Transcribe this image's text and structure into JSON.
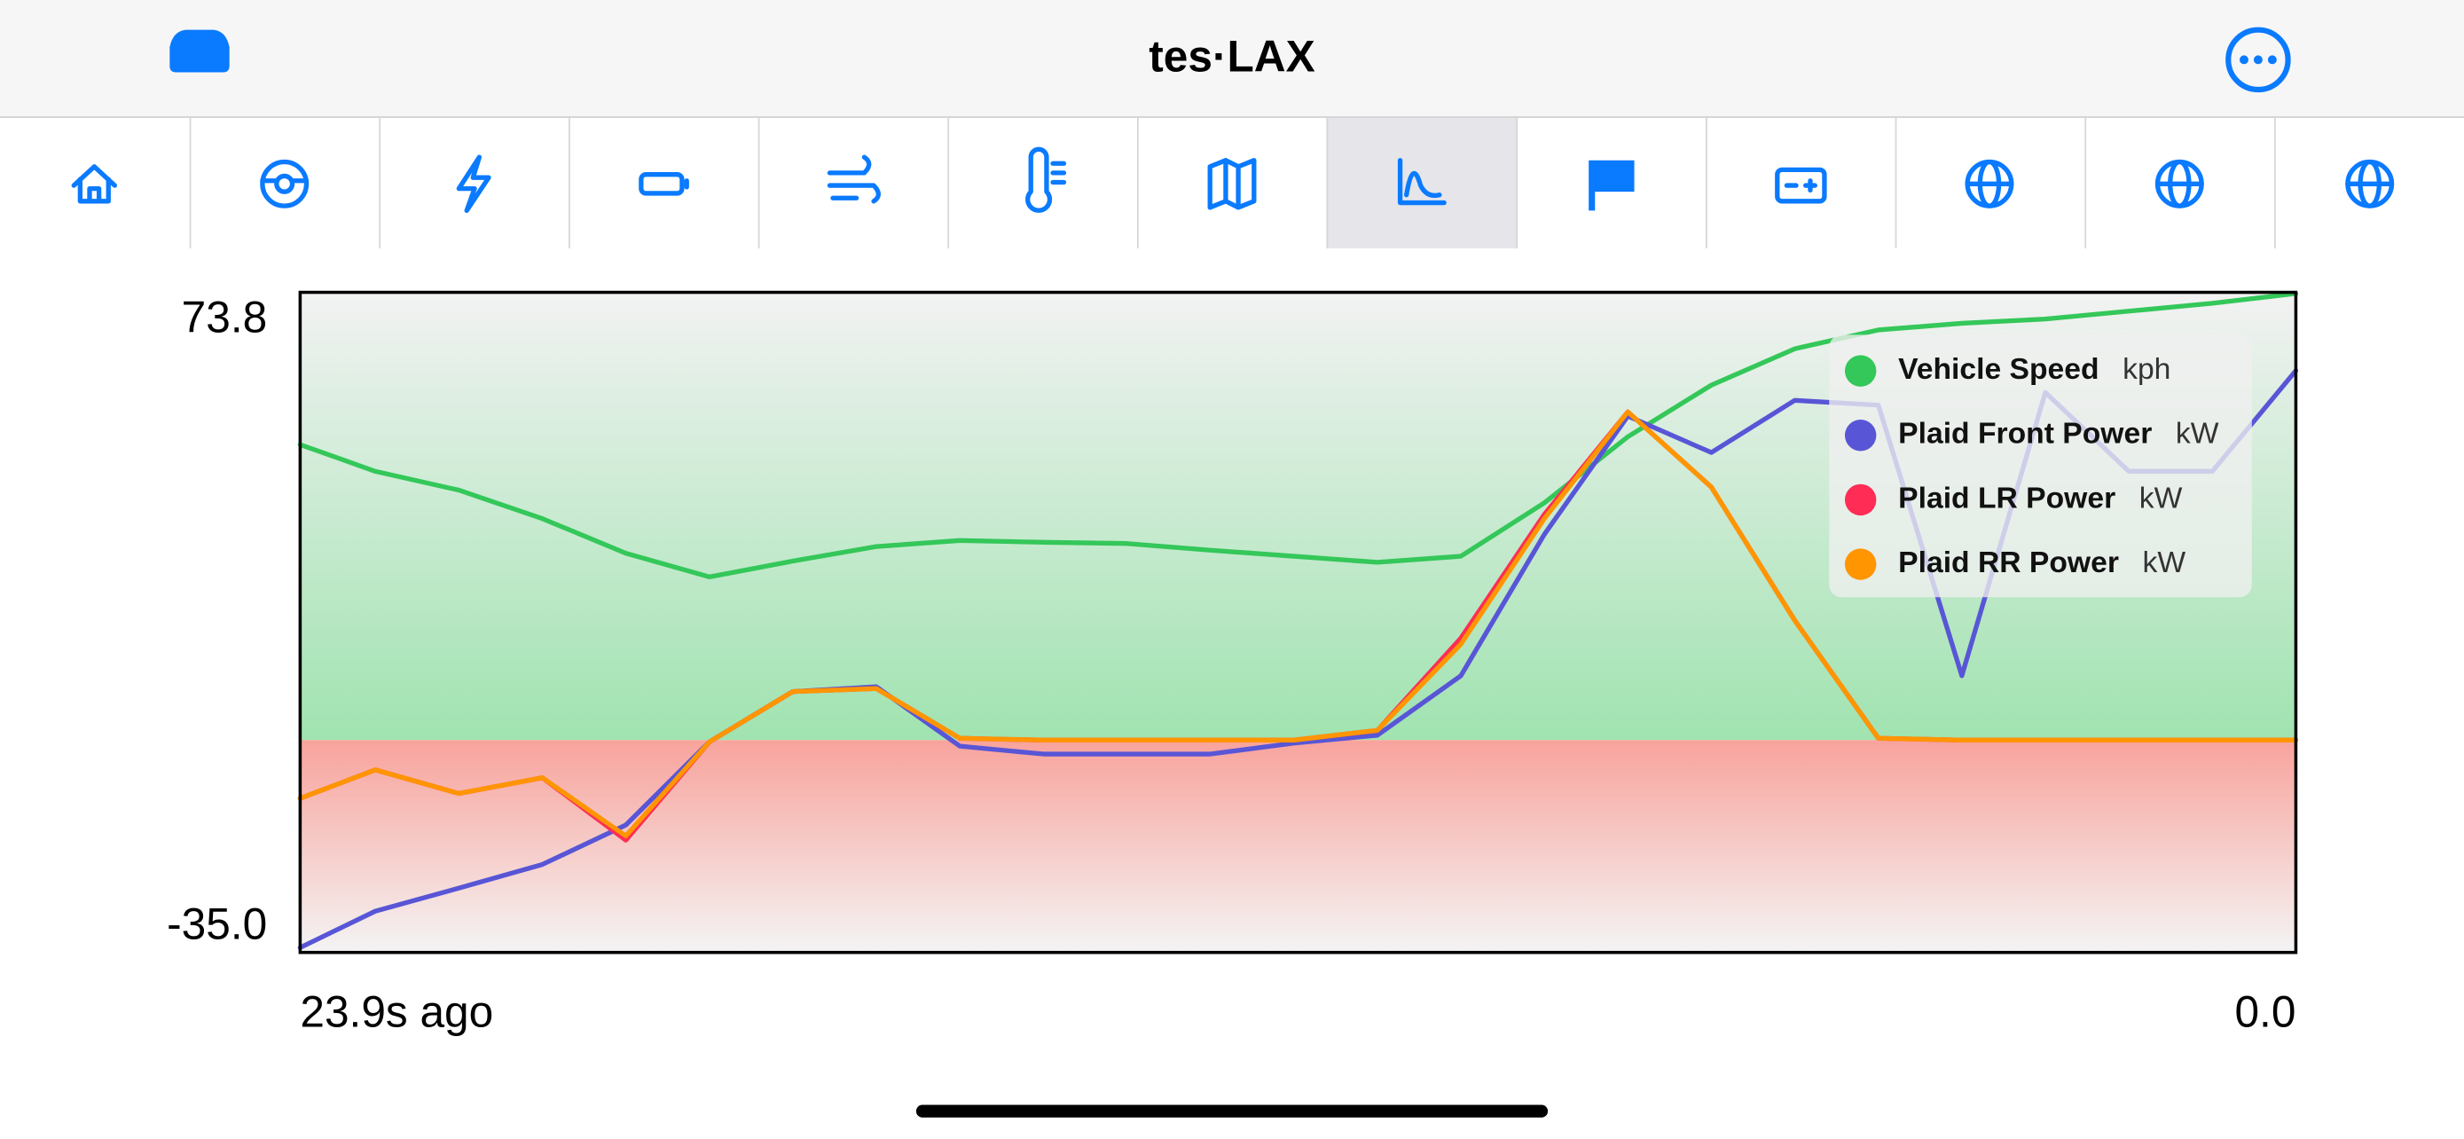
{
  "header": {
    "title": "tes·LAX"
  },
  "chart_data": {
    "type": "line",
    "x": [
      -23.9,
      -23,
      -22,
      -21,
      -20,
      -19,
      -18,
      -17,
      -16,
      -15,
      -14,
      -13,
      -12,
      -11,
      -10,
      -9,
      -8,
      -7,
      -6,
      -5,
      -4,
      -3,
      -2,
      -1,
      0
    ],
    "xlim": [
      -23.9,
      0
    ],
    "xticks": [
      {
        "value": -23.9,
        "label": "23.9s ago"
      },
      {
        "value": 0,
        "label": "0.0"
      }
    ],
    "ylim": [
      -35,
      73.8
    ],
    "yticks": [
      73.8,
      {
        "value": -35,
        "label": "-35.0"
      }
    ],
    "legend": "upper right",
    "series": [
      {
        "name": "Vehicle Speed",
        "unit": "kph",
        "color": "#34c759",
        "values": [
          48.7,
          44.3,
          41.2,
          36.5,
          30.8,
          26.9,
          29.5,
          31.9,
          32.9,
          32.6,
          32.4,
          31.3,
          30.3,
          29.3,
          30.3,
          39.1,
          50.0,
          58.5,
          64.5,
          67.6,
          68.7,
          69.4,
          70.7,
          72.0,
          73.6
        ]
      },
      {
        "name": "Plaid Front Power",
        "unit": "kW",
        "color": "#5856d6",
        "values": [
          -34.2,
          -28.2,
          -24.4,
          -20.5,
          -14.0,
          -0.3,
          8.0,
          8.8,
          -1.0,
          -2.3,
          -2.3,
          -2.3,
          -0.5,
          0.8,
          10.6,
          33.9,
          53.4,
          47.4,
          56.0,
          55.2,
          10.6,
          57.3,
          44.3,
          44.3,
          60.9
        ]
      },
      {
        "name": "Plaid LR Power",
        "unit": "kW",
        "color": "#ff2d55",
        "values": [
          -9.6,
          -4.9,
          -8.8,
          -6.2,
          -16.5,
          -0.3,
          8.0,
          8.5,
          0.3,
          0,
          0,
          0,
          0,
          1.6,
          16.8,
          37.2,
          54.1,
          41.7,
          19.7,
          0.3,
          0,
          0,
          0,
          0,
          0
        ]
      },
      {
        "name": "Plaid RR Power",
        "unit": "kW",
        "color": "#ff9500",
        "values": [
          -9.6,
          -4.9,
          -8.8,
          -6.2,
          -15.8,
          -0.3,
          8.0,
          8.5,
          0.3,
          0,
          0,
          0,
          0,
          1.6,
          15.8,
          36.5,
          54.1,
          41.7,
          19.7,
          0.3,
          0,
          0,
          0,
          0,
          0
        ]
      }
    ]
  }
}
